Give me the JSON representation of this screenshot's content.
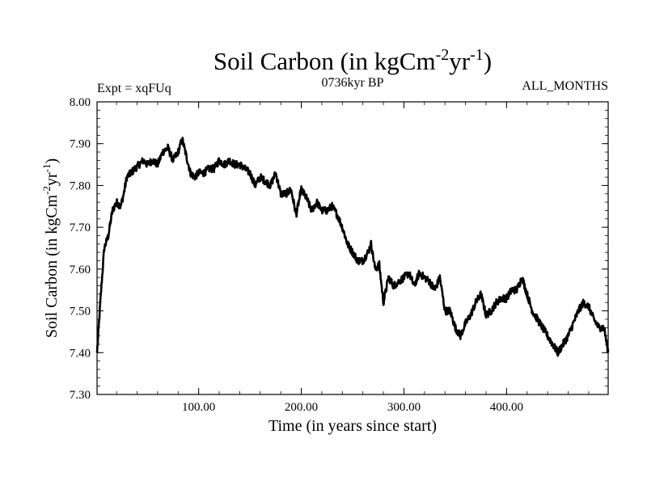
{
  "chart_data": {
    "type": "line",
    "title": "Soil Carbon (in kgCm",
    "title_sup1": "-2",
    "title_mid": "yr",
    "title_sup2": "-1",
    "title_end": ")",
    "left_label": "Expt = xqFUq",
    "center_label": "0736kyr BP",
    "right_label": "ALL_MONTHS",
    "xlabel": "Time (in years since start)",
    "ylabel": "Soil Carbon (in kgCm",
    "ylabel_sup1": "-2",
    "ylabel_mid": "yr",
    "ylabel_sup2": "-1",
    "ylabel_end": ")",
    "xlim": [
      1,
      499
    ],
    "ylim": [
      7.3,
      8.0
    ],
    "xticks": [
      100,
      200,
      300,
      400
    ],
    "xtick_labels": [
      "100.00",
      "200.00",
      "300.00",
      "400.00"
    ],
    "yticks": [
      7.3,
      7.4,
      7.5,
      7.6,
      7.7,
      7.8,
      7.9,
      8.0
    ],
    "ytick_labels": [
      "7.30",
      "7.40",
      "7.50",
      "7.60",
      "7.70",
      "7.80",
      "7.90",
      "8.00"
    ],
    "series": [
      {
        "name": "Soil Carbon",
        "color": "#000000",
        "x": [
          1,
          5,
          8,
          12,
          16,
          20,
          24,
          27,
          30,
          34,
          38,
          42,
          46,
          50,
          55,
          60,
          65,
          70,
          75,
          80,
          84,
          88,
          92,
          96,
          100,
          105,
          110,
          115,
          120,
          125,
          130,
          135,
          140,
          145,
          150,
          155,
          160,
          165,
          170,
          175,
          180,
          185,
          190,
          195,
          200,
          205,
          210,
          215,
          220,
          225,
          230,
          235,
          240,
          245,
          250,
          255,
          260,
          265,
          268,
          272,
          276,
          280,
          285,
          290,
          295,
          300,
          305,
          310,
          315,
          320,
          325,
          330,
          335,
          340,
          345,
          350,
          355,
          360,
          365,
          370,
          375,
          380,
          385,
          390,
          395,
          400,
          405,
          410,
          415,
          420,
          425,
          430,
          435,
          440,
          445,
          450,
          455,
          460,
          465,
          470,
          475,
          480,
          485,
          490,
          495,
          499
        ],
        "y": [
          7.4,
          7.55,
          7.65,
          7.68,
          7.74,
          7.76,
          7.75,
          7.78,
          7.82,
          7.83,
          7.84,
          7.85,
          7.86,
          7.85,
          7.86,
          7.85,
          7.88,
          7.89,
          7.86,
          7.88,
          7.91,
          7.87,
          7.83,
          7.82,
          7.83,
          7.83,
          7.84,
          7.84,
          7.86,
          7.85,
          7.86,
          7.85,
          7.85,
          7.84,
          7.83,
          7.8,
          7.82,
          7.81,
          7.8,
          7.83,
          7.78,
          7.78,
          7.79,
          7.73,
          7.79,
          7.77,
          7.74,
          7.76,
          7.74,
          7.74,
          7.75,
          7.73,
          7.7,
          7.66,
          7.64,
          7.62,
          7.62,
          7.64,
          7.66,
          7.6,
          7.61,
          7.52,
          7.58,
          7.56,
          7.57,
          7.58,
          7.59,
          7.56,
          7.59,
          7.58,
          7.57,
          7.55,
          7.58,
          7.5,
          7.5,
          7.46,
          7.44,
          7.47,
          7.49,
          7.52,
          7.54,
          7.49,
          7.5,
          7.52,
          7.53,
          7.53,
          7.55,
          7.55,
          7.58,
          7.54,
          7.5,
          7.48,
          7.46,
          7.44,
          7.42,
          7.4,
          7.42,
          7.44,
          7.47,
          7.5,
          7.52,
          7.51,
          7.48,
          7.46,
          7.46,
          7.4
        ]
      }
    ]
  }
}
